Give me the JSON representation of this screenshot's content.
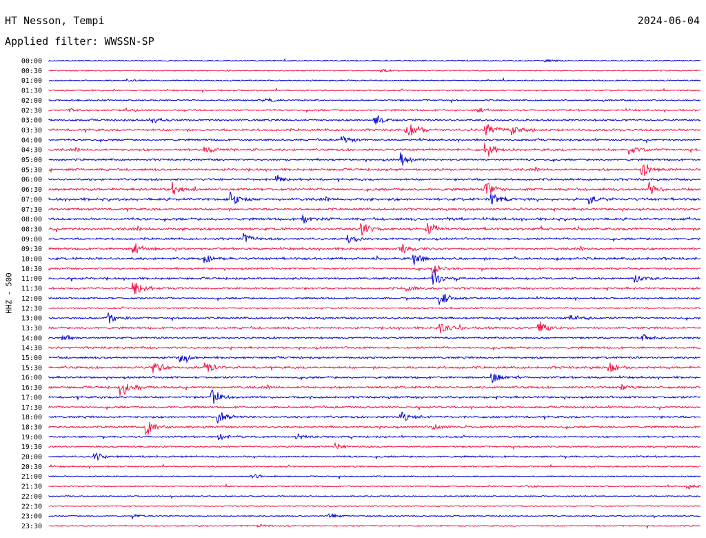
{
  "header": {
    "station": "HT Nesson, Tempi",
    "date": "2024-06-04",
    "filter": "Applied filter: WWSSN-SP"
  },
  "chart_data": {
    "type": "line",
    "title": "HT Nesson, Tempi",
    "date": "2024-06-04",
    "subtitle": "Applied filter: WWSSN-SP",
    "ylabel": "HHZ - 500",
    "xlabel": "",
    "grid": false,
    "legend": "none",
    "row_interval_minutes": 30,
    "colors": [
      "#0000cc",
      "#ee1144"
    ],
    "rows": [
      {
        "label": "00:00",
        "color": "#0000cc",
        "activity": 0.05,
        "events": [
          {
            "pos": 0.76,
            "amp": 0.15
          }
        ]
      },
      {
        "label": "00:30",
        "color": "#ee1144",
        "activity": 0.08,
        "events": [
          {
            "pos": 0.51,
            "amp": 0.15
          }
        ]
      },
      {
        "label": "01:00",
        "color": "#0000cc",
        "activity": 0.1,
        "events": [
          {
            "pos": 0.12,
            "amp": 0.15
          }
        ]
      },
      {
        "label": "01:30",
        "color": "#ee1144",
        "activity": 0.15,
        "events": []
      },
      {
        "label": "02:00",
        "color": "#0000cc",
        "activity": 0.2,
        "events": [
          {
            "pos": 0.33,
            "amp": 0.25
          }
        ]
      },
      {
        "label": "02:30",
        "color": "#ee1144",
        "activity": 0.25,
        "events": [
          {
            "pos": 0.03,
            "amp": 0.2
          },
          {
            "pos": 0.12,
            "amp": 0.2
          },
          {
            "pos": 0.66,
            "amp": 0.2
          }
        ]
      },
      {
        "label": "03:00",
        "color": "#0000cc",
        "activity": 0.3,
        "events": [
          {
            "pos": 0.16,
            "amp": 0.35
          },
          {
            "pos": 0.5,
            "amp": 0.6
          }
        ]
      },
      {
        "label": "03:30",
        "color": "#ee1144",
        "activity": 0.4,
        "events": [
          {
            "pos": 0.55,
            "amp": 1.0
          },
          {
            "pos": 0.67,
            "amp": 1.0
          },
          {
            "pos": 0.71,
            "amp": 0.6
          }
        ]
      },
      {
        "label": "04:00",
        "color": "#0000cc",
        "activity": 0.3,
        "events": [
          {
            "pos": 0.45,
            "amp": 0.5
          }
        ]
      },
      {
        "label": "04:30",
        "color": "#ee1144",
        "activity": 0.4,
        "events": [
          {
            "pos": 0.24,
            "amp": 0.4
          },
          {
            "pos": 0.67,
            "amp": 0.9
          },
          {
            "pos": 0.89,
            "amp": 0.6
          }
        ]
      },
      {
        "label": "05:00",
        "color": "#0000cc",
        "activity": 0.3,
        "events": [
          {
            "pos": 0.54,
            "amp": 0.8
          }
        ]
      },
      {
        "label": "05:30",
        "color": "#ee1144",
        "activity": 0.4,
        "events": [
          {
            "pos": 0.91,
            "amp": 1.0
          }
        ]
      },
      {
        "label": "06:00",
        "color": "#0000cc",
        "activity": 0.35,
        "events": [
          {
            "pos": 0.35,
            "amp": 0.4
          }
        ]
      },
      {
        "label": "06:30",
        "color": "#ee1144",
        "activity": 0.45,
        "events": [
          {
            "pos": 0.19,
            "amp": 0.6
          },
          {
            "pos": 0.67,
            "amp": 1.0
          },
          {
            "pos": 0.92,
            "amp": 0.7
          }
        ]
      },
      {
        "label": "07:00",
        "color": "#0000cc",
        "activity": 0.5,
        "events": [
          {
            "pos": 0.28,
            "amp": 0.7
          },
          {
            "pos": 0.68,
            "amp": 0.6
          },
          {
            "pos": 0.83,
            "amp": 0.4
          }
        ]
      },
      {
        "label": "07:30",
        "color": "#ee1144",
        "activity": 0.4,
        "events": []
      },
      {
        "label": "08:00",
        "color": "#0000cc",
        "activity": 0.45,
        "events": [
          {
            "pos": 0.39,
            "amp": 0.4
          }
        ]
      },
      {
        "label": "08:30",
        "color": "#ee1144",
        "activity": 0.5,
        "events": [
          {
            "pos": 0.48,
            "amp": 0.9
          },
          {
            "pos": 0.58,
            "amp": 1.0
          }
        ]
      },
      {
        "label": "09:00",
        "color": "#0000cc",
        "activity": 0.35,
        "events": [
          {
            "pos": 0.3,
            "amp": 0.5
          },
          {
            "pos": 0.46,
            "amp": 0.4
          }
        ]
      },
      {
        "label": "09:30",
        "color": "#ee1144",
        "activity": 0.4,
        "events": [
          {
            "pos": 0.13,
            "amp": 0.6
          },
          {
            "pos": 0.54,
            "amp": 0.5
          }
        ]
      },
      {
        "label": "10:00",
        "color": "#0000cc",
        "activity": 0.45,
        "events": [
          {
            "pos": 0.24,
            "amp": 0.4
          },
          {
            "pos": 0.56,
            "amp": 0.6
          }
        ]
      },
      {
        "label": "10:30",
        "color": "#ee1144",
        "activity": 0.3,
        "events": [
          {
            "pos": 0.59,
            "amp": 0.6
          }
        ]
      },
      {
        "label": "11:00",
        "color": "#0000cc",
        "activity": 0.35,
        "events": [
          {
            "pos": 0.59,
            "amp": 1.0
          },
          {
            "pos": 0.9,
            "amp": 0.4
          }
        ]
      },
      {
        "label": "11:30",
        "color": "#ee1144",
        "activity": 0.35,
        "events": [
          {
            "pos": 0.13,
            "amp": 1.0
          },
          {
            "pos": 0.55,
            "amp": 0.4
          }
        ]
      },
      {
        "label": "12:00",
        "color": "#0000cc",
        "activity": 0.25,
        "events": [
          {
            "pos": 0.6,
            "amp": 0.9
          }
        ]
      },
      {
        "label": "12:30",
        "color": "#ee1144",
        "activity": 0.2,
        "events": []
      },
      {
        "label": "13:00",
        "color": "#0000cc",
        "activity": 0.3,
        "events": [
          {
            "pos": 0.09,
            "amp": 0.7
          },
          {
            "pos": 0.8,
            "amp": 0.4
          }
        ]
      },
      {
        "label": "13:30",
        "color": "#ee1144",
        "activity": 0.35,
        "events": [
          {
            "pos": 0.6,
            "amp": 0.7
          },
          {
            "pos": 0.75,
            "amp": 0.8
          }
        ]
      },
      {
        "label": "14:00",
        "color": "#0000cc",
        "activity": 0.3,
        "events": [
          {
            "pos": 0.02,
            "amp": 0.4
          },
          {
            "pos": 0.91,
            "amp": 0.4
          }
        ]
      },
      {
        "label": "14:30",
        "color": "#ee1144",
        "activity": 0.35,
        "events": []
      },
      {
        "label": "15:00",
        "color": "#0000cc",
        "activity": 0.35,
        "events": [
          {
            "pos": 0.2,
            "amp": 0.6
          }
        ]
      },
      {
        "label": "15:30",
        "color": "#ee1144",
        "activity": 0.4,
        "events": [
          {
            "pos": 0.16,
            "amp": 0.7
          },
          {
            "pos": 0.24,
            "amp": 0.7
          },
          {
            "pos": 0.86,
            "amp": 0.7
          }
        ]
      },
      {
        "label": "16:00",
        "color": "#0000cc",
        "activity": 0.35,
        "events": [
          {
            "pos": 0.68,
            "amp": 0.6
          }
        ]
      },
      {
        "label": "16:30",
        "color": "#ee1144",
        "activity": 0.4,
        "events": [
          {
            "pos": 0.11,
            "amp": 1.0
          },
          {
            "pos": 0.88,
            "amp": 0.4
          }
        ]
      },
      {
        "label": "17:00",
        "color": "#0000cc",
        "activity": 0.35,
        "events": [
          {
            "pos": 0.25,
            "amp": 1.0
          }
        ]
      },
      {
        "label": "17:30",
        "color": "#ee1144",
        "activity": 0.3,
        "events": []
      },
      {
        "label": "18:00",
        "color": "#0000cc",
        "activity": 0.35,
        "events": [
          {
            "pos": 0.26,
            "amp": 0.7
          },
          {
            "pos": 0.54,
            "amp": 0.9
          }
        ]
      },
      {
        "label": "18:30",
        "color": "#ee1144",
        "activity": 0.3,
        "events": [
          {
            "pos": 0.15,
            "amp": 1.0
          },
          {
            "pos": 0.59,
            "amp": 0.4
          }
        ]
      },
      {
        "label": "19:00",
        "color": "#0000cc",
        "activity": 0.25,
        "events": [
          {
            "pos": 0.26,
            "amp": 0.4
          },
          {
            "pos": 0.38,
            "amp": 0.3
          }
        ]
      },
      {
        "label": "19:30",
        "color": "#ee1144",
        "activity": 0.2,
        "events": [
          {
            "pos": 0.44,
            "amp": 0.3
          }
        ]
      },
      {
        "label": "20:00",
        "color": "#0000cc",
        "activity": 0.25,
        "events": [
          {
            "pos": 0.07,
            "amp": 0.6
          }
        ]
      },
      {
        "label": "20:30",
        "color": "#ee1144",
        "activity": 0.15,
        "events": []
      },
      {
        "label": "21:00",
        "color": "#0000cc",
        "activity": 0.1,
        "events": [
          {
            "pos": 0.31,
            "amp": 0.3
          }
        ]
      },
      {
        "label": "21:30",
        "color": "#ee1144",
        "activity": 0.1,
        "events": [
          {
            "pos": 0.73,
            "amp": 0.2
          },
          {
            "pos": 0.98,
            "amp": 0.3
          }
        ]
      },
      {
        "label": "22:00",
        "color": "#0000cc",
        "activity": 0.08,
        "events": []
      },
      {
        "label": "22:30",
        "color": "#ee1144",
        "activity": 0.06,
        "events": []
      },
      {
        "label": "23:00",
        "color": "#0000cc",
        "activity": 0.08,
        "events": [
          {
            "pos": 0.13,
            "amp": 0.2
          },
          {
            "pos": 0.43,
            "amp": 0.3
          }
        ]
      },
      {
        "label": "23:30",
        "color": "#ee1144",
        "activity": 0.12,
        "events": [
          {
            "pos": 0.32,
            "amp": 0.2
          }
        ]
      }
    ]
  }
}
